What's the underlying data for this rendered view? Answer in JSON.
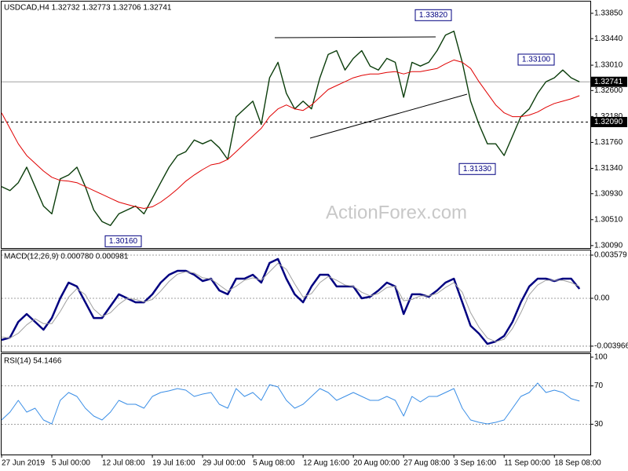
{
  "chart_data": [
    {
      "type": "line",
      "title": "USDCAD,H4  1.32732 1.32773 1.32706 1.32741",
      "watermark": "ActionForex.com",
      "categories": [
        "27 Jun 2019",
        null,
        null,
        null,
        null,
        null,
        "5 Jul 00:00",
        null,
        null,
        null,
        null,
        null,
        "12 Jul 08:00",
        null,
        null,
        null,
        null,
        null,
        "19 Jul 16:00",
        null,
        null,
        null,
        null,
        null,
        "29 Jul 00:00",
        null,
        null,
        null,
        null,
        null,
        "5 Aug 08:00",
        null,
        null,
        null,
        null,
        null,
        "12 Aug 16:00",
        null,
        null,
        null,
        null,
        null,
        "20 Aug 00:00",
        null,
        null,
        null,
        null,
        null,
        "27 Aug 08:00",
        null,
        null,
        null,
        null,
        null,
        "3 Sep 16:00",
        null,
        null,
        null,
        null,
        null,
        "11 Sep 00:00",
        null,
        null,
        null,
        null,
        null,
        "18 Sep 08:00",
        null,
        null,
        null
      ],
      "series": [
        {
          "color": "#0b3d0b",
          "values": [
            1.31045,
            1.30982,
            1.31108,
            1.31359,
            1.31045,
            1.3073,
            1.30604,
            1.3117,
            1.31233,
            1.31359,
            1.31045,
            1.30667,
            1.30479,
            1.30416,
            1.30604,
            1.30667,
            1.3073,
            1.30604,
            1.30856,
            1.31108,
            1.31359,
            1.31548,
            1.31611,
            1.31799,
            1.31737,
            1.31799,
            1.31674,
            1.31485,
            1.32177,
            1.32303,
            1.32428,
            1.32051,
            1.32806,
            1.33057,
            1.32554,
            1.32303,
            1.32428,
            1.32303,
            1.32806,
            1.33183,
            1.33246,
            1.32932,
            1.3312,
            1.33246,
            1.32995,
            1.32932,
            1.3312,
            1.33057,
            1.32491,
            1.33057,
            1.32995,
            1.33057,
            1.33246,
            1.33498,
            1.33561,
            1.33057,
            1.32428,
            1.32051,
            1.31737,
            1.31737,
            1.31548,
            1.31862,
            1.32177,
            1.32303,
            1.32554,
            1.32743,
            1.32806,
            1.32932,
            1.32806,
            1.32741
          ]
        },
        {
          "color": "#e00000",
          "values": [
            1.3224,
            1.31988,
            1.31737,
            1.31548,
            1.31422,
            1.31296,
            1.31196,
            1.31145,
            1.31133,
            1.31108,
            1.31045,
            1.30982,
            1.30919,
            1.30856,
            1.30793,
            1.30755,
            1.30718,
            1.30692,
            1.30718,
            1.30793,
            1.30894,
            1.31007,
            1.31133,
            1.31233,
            1.31321,
            1.31397,
            1.31422,
            1.31485,
            1.31611,
            1.31737,
            1.31862,
            1.31988,
            1.32177,
            1.32303,
            1.32366,
            1.32303,
            1.32277,
            1.32366,
            1.32491,
            1.32617,
            1.3268,
            1.32743,
            1.32806,
            1.32844,
            1.32869,
            1.32869,
            1.32894,
            1.32906,
            1.32869,
            1.32906,
            1.32906,
            1.32932,
            1.32957,
            1.33032,
            1.33095,
            1.33057,
            1.32957,
            1.32743,
            1.32554,
            1.32366,
            1.3224,
            1.32177,
            1.32177,
            1.32202,
            1.32252,
            1.32328,
            1.32391,
            1.32428,
            1.32466,
            1.32517
          ]
        }
      ],
      "ylim": [
        1.3005,
        1.3404
      ],
      "yticks": [
        {
          "value": 1.3385,
          "label": "1.33850"
        },
        {
          "value": 1.3344,
          "label": "1.33440"
        },
        {
          "value": 1.3301,
          "label": "1.33010"
        },
        {
          "value": 1.326,
          "label": "1.32600"
        },
        {
          "value": 1.3218,
          "label": "1.32180"
        },
        {
          "value": 1.3176,
          "label": "1.31760"
        },
        {
          "value": 1.3134,
          "label": "1.31340"
        },
        {
          "value": 1.3093,
          "label": "1.30930"
        },
        {
          "value": 1.3051,
          "label": "1.30510"
        },
        {
          "value": 1.3009,
          "label": "1.30090"
        }
      ],
      "grid": false,
      "hlines": [
        1.32741,
        {
          "value": 1.3209,
          "label": "1.32090"
        }
      ],
      "annotations": [
        {
          "value": 1.3382,
          "label": "1.33820"
        },
        {
          "value": 1.331,
          "label": "1.33100"
        },
        {
          "value": 1.3133,
          "label": "1.31330"
        },
        {
          "value": 1.3016,
          "label": "1.30160"
        }
      ]
    },
    {
      "type": "line",
      "title": "MACD(12,26,9) 0.000780 0.000981",
      "series": [
        {
          "color": "#000080",
          "values": [
            -0.00345,
            -0.00326,
            -0.00195,
            -0.0013,
            -0.00195,
            -0.0026,
            -0.00163,
            0,
            0.0013,
            0.00098,
            -0.00033,
            -0.00163,
            -0.00163,
            -0.00065,
            0.00033,
            0,
            -0.00033,
            -0.00033,
            0.00033,
            0.0013,
            0.00195,
            0.00228,
            0.00228,
            0.00195,
            0.00143,
            0.00163,
            0.00065,
            0.00033,
            0.00163,
            0.00163,
            0.00195,
            0.0013,
            0.00293,
            0.00326,
            0.00163,
            0.00033,
            -0.00033,
            0.00098,
            0.00195,
            0.00195,
            0.00098,
            0.00098,
            0.00098,
            0,
            0.00013,
            0.00065,
            0.0013,
            0.00098,
            -0.0013,
            0.00033,
            0.00033,
            0.00013,
            0.00065,
            0.0013,
            0.00163,
            -0.00033,
            -0.00228,
            -0.00293,
            -0.00378,
            -0.00358,
            -0.00312,
            -0.00195,
            -0.00033,
            0.00098,
            0.00163,
            0.00163,
            0.00143,
            0.00163,
            0.00163,
            0.00078
          ]
        },
        {
          "color": "#a0a0a0",
          "values": [
            -0.0032,
            -0.0033,
            -0.0029,
            -0.0022,
            -0.0017,
            -0.0021,
            -0.0021,
            -0.0011,
            0.0001,
            0.0008,
            0.0003,
            -0.0009,
            -0.0015,
            -0.0012,
            -0.0005,
            0,
            -0.0001,
            -0.0003,
            -0.0001,
            0.0006,
            0.0014,
            0.002,
            0.0022,
            0.0021,
            0.0017,
            0.0016,
            0.0011,
            0.0006,
            0.001,
            0.0015,
            0.0017,
            0.0015,
            0.0022,
            0.0029,
            0.0024,
            0.0012,
            0.0001,
            0.0004,
            0.0013,
            0.0018,
            0.0015,
            0.0011,
            0.001,
            0.0005,
            0.0002,
            0.0004,
            0.0009,
            0.001,
            -0.0002,
            -0.0001,
            0.0002,
            0.0002,
            0.0004,
            0.0009,
            0.0013,
            0.0005,
            -0.0012,
            -0.0024,
            -0.0033,
            -0.0036,
            -0.0034,
            -0.0025,
            -0.0012,
            0.0003,
            0.0011,
            0.0015,
            0.0015,
            0.0015,
            0.0013,
            0.000981
          ]
        }
      ],
      "ylim": [
        -0.00436,
        0.00397
      ],
      "yticks": [
        0.003579,
        {
          "value": 0,
          "label": "0.00"
        },
        -0.003966
      ],
      "grid": true
    },
    {
      "type": "line",
      "title": "RSI(14) 54.1466",
      "series": [
        {
          "color": "#3a8ee6",
          "values": [
            34.4,
            42.6,
            54.9,
            42.6,
            46.7,
            34.4,
            30.3,
            54.9,
            63.1,
            59,
            46.7,
            38.5,
            34.4,
            42.6,
            54.9,
            50.8,
            50.8,
            46.7,
            59,
            63.1,
            64.8,
            67.2,
            65.6,
            59,
            61.5,
            63.1,
            50.8,
            46.7,
            67.2,
            59,
            63.1,
            54.9,
            71.3,
            68.9,
            54.9,
            46.7,
            50.8,
            59,
            67.2,
            63.1,
            54.9,
            59,
            63.1,
            59,
            54.9,
            54.9,
            59,
            54.9,
            38.5,
            59,
            53.3,
            59,
            59,
            63.1,
            67.2,
            46.7,
            34.4,
            32,
            30.3,
            32,
            34.4,
            46.7,
            59,
            63.1,
            73,
            63.1,
            65.6,
            63.1,
            56.6,
            54.1466
          ]
        }
      ],
      "ylim": [
        0,
        100
      ],
      "yticks": [
        100,
        70,
        30
      ],
      "grid": true
    }
  ]
}
